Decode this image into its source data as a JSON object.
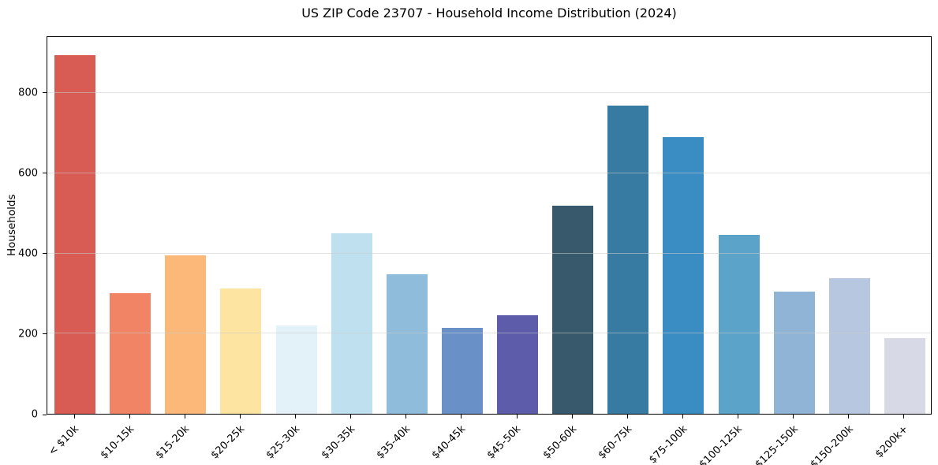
{
  "figure": {
    "background": "#ffffff",
    "spine_color": "#000000",
    "grid_color": "#cccccc"
  },
  "chart_data": {
    "type": "bar",
    "title": "US ZIP Code 23707 - Household Income Distribution (2024)",
    "ylabel": "Households",
    "xlabel": "",
    "categories": [
      "< $10k",
      "$10-15k",
      "$15-20k",
      "$20-25k",
      "$25-30k",
      "$30-35k",
      "$35-40k",
      "$40-45k",
      "$45-50k",
      "$50-60k",
      "$60-75k",
      "$75-100k",
      "$100-125k",
      "$125-150k",
      "$150-200k",
      "$200k+"
    ],
    "values": [
      895,
      300,
      395,
      313,
      220,
      450,
      348,
      214,
      246,
      520,
      768,
      690,
      447,
      305,
      338,
      189
    ],
    "bar_colors": [
      "#d85c53",
      "#f08465",
      "#fbb878",
      "#fde4a1",
      "#e3f1f8",
      "#bfe0ee",
      "#90bcdc",
      "#6a90c8",
      "#5c5cab",
      "#38596b",
      "#377ba3",
      "#3a8dc2",
      "#5ba3c9",
      "#90b4d6",
      "#b8c7e0",
      "#d8d9e6"
    ],
    "yticks": [
      0,
      200,
      400,
      600,
      800
    ],
    "gridline_values": [
      200,
      400,
      600,
      800
    ],
    "ylim": [
      0,
      940
    ],
    "grid": "horizontal",
    "legend": "none",
    "x_tick_rotation_deg": 45
  }
}
